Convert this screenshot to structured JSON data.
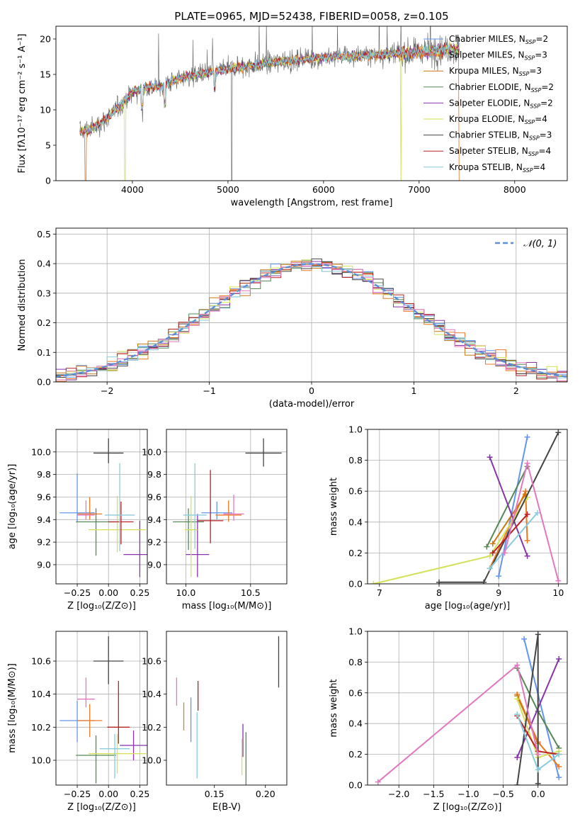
{
  "title": "PLATE=0965, MJD=52438, FIBERID=0058, z=0.105",
  "colors": [
    "#6495ed",
    "#ee7722",
    "#cc7711",
    "#558855",
    "#8833aa",
    "#d4e157",
    "#444444",
    "#bb2222",
    "#88ccdd",
    "#e377c2"
  ],
  "legend_spectrum": [
    {
      "label": "Chabrier MILES, N",
      "sub": "SSP",
      "eq": "=2",
      "color": "#6495ed"
    },
    {
      "label": "Salpeter MILES, N",
      "sub": "SSP",
      "eq": "=3",
      "color": "#ee7722"
    },
    {
      "label": "Kroupa MILES, N",
      "sub": "SSP",
      "eq": "=3",
      "color": "#cc7711"
    },
    {
      "label": "Chabrier ELODIE, N",
      "sub": "SSP",
      "eq": "=2",
      "color": "#558855"
    },
    {
      "label": "Salpeter ELODIE, N",
      "sub": "SSP",
      "eq": "=2",
      "color": "#8833aa"
    },
    {
      "label": "Kroupa ELODIE, N",
      "sub": "SSP",
      "eq": "=4",
      "color": "#d4e157"
    },
    {
      "label": "Chabrier STELIB, N",
      "sub": "SSP",
      "eq": "=3",
      "color": "#444444"
    },
    {
      "label": "Salpeter STELIB, N",
      "sub": "SSP",
      "eq": "=4",
      "color": "#bb2222"
    },
    {
      "label": "Kroupa STELIB, N",
      "sub": "SSP",
      "eq": "=4",
      "color": "#88ccdd"
    }
  ],
  "chart_data": [
    {
      "type": "line",
      "title": "PLATE=0965, MJD=52438, FIBERID=0058, z=0.105",
      "xlabel": "wavelength [Angstrom, rest frame]",
      "ylabel": "Flux [fλ10⁻¹⁷ erg cm⁻² s⁻¹ A⁻¹]",
      "xlim": [
        3200,
        8550
      ],
      "ylim": [
        0,
        21.8
      ],
      "xticks": [
        4000,
        5000,
        6000,
        7000,
        8000
      ],
      "yticks": [
        0,
        5,
        10,
        15,
        20
      ],
      "grid": false,
      "legend": "right",
      "envelope": {
        "x": [
          3450,
          3600,
          3750,
          3900,
          4000,
          4100,
          4200,
          4300,
          4400,
          4500,
          4700,
          4900,
          5100,
          5300,
          5500,
          5700,
          5900,
          6100,
          6300,
          6500,
          6700,
          6900,
          7100,
          7300,
          7420
        ],
        "y": [
          7.0,
          7.5,
          9.0,
          11.0,
          12.5,
          13.0,
          13.3,
          13.2,
          14.0,
          14.5,
          15.0,
          15.5,
          16.0,
          16.3,
          16.8,
          17.0,
          17.3,
          17.5,
          17.6,
          17.7,
          17.9,
          18.0,
          18.3,
          18.6,
          18.5
        ]
      }
    },
    {
      "type": "histogram",
      "xlabel": "(data-model)/error",
      "ylabel": "Normed distribution",
      "xlim": [
        -2.5,
        2.5
      ],
      "ylim": [
        0,
        0.52
      ],
      "xticks": [
        -2,
        -1,
        0,
        1,
        2
      ],
      "yticks": [
        0.0,
        0.1,
        0.2,
        0.3,
        0.4,
        0.5
      ],
      "grid": true,
      "legend": "top-right",
      "legend_label": "𝒩(0, 1)",
      "reference_curve": "standard normal"
    },
    {
      "type": "scatter",
      "xlabel": "Z [log₁₀(Z/Z⊙)]",
      "ylabel": "age  [log₁₀(age/yr)]",
      "xlim": [
        -0.42,
        0.31
      ],
      "ylim": [
        8.83,
        10.2
      ],
      "xticks": [
        -0.25,
        0.0,
        0.25
      ],
      "yticks": [
        9.0,
        9.2,
        9.4,
        9.6,
        9.8,
        10.0
      ],
      "grid": true,
      "points": [
        {
          "x": -0.25,
          "y": 9.46,
          "ex": 0.14,
          "eylo": 0.08,
          "eyhi": 0.35,
          "c": 0
        },
        {
          "x": -0.15,
          "y": 9.45,
          "ex": 0.1,
          "eylo": 0.05,
          "eyhi": 0.15,
          "c": 1
        },
        {
          "x": -0.18,
          "y": 9.44,
          "ex": 0.07,
          "eylo": 0.04,
          "eyhi": 0.13,
          "c": 9
        },
        {
          "x": -0.1,
          "y": 9.38,
          "ex": 0.16,
          "eylo": 0.3,
          "eyhi": 0.12,
          "c": 3
        },
        {
          "x": 0.25,
          "y": 9.09,
          "ex": 0.13,
          "eylo": 0.2,
          "eyhi": 0.3,
          "c": 4
        },
        {
          "x": 0.07,
          "y": 9.31,
          "ex": 0.23,
          "eylo": 0.2,
          "eyhi": 0.3,
          "c": 5
        },
        {
          "x": 0.0,
          "y": 9.99,
          "ex": 0.12,
          "eylo": 0.09,
          "eyhi": 0.13,
          "c": 6
        },
        {
          "x": 0.1,
          "y": 9.38,
          "ex": 0.1,
          "eylo": 0.2,
          "eyhi": 0.18,
          "c": 7
        },
        {
          "x": 0.09,
          "y": 9.44,
          "ex": 0.12,
          "eylo": 0.32,
          "eyhi": 0.46,
          "c": 8
        }
      ]
    },
    {
      "type": "scatter",
      "xlabel": "mass [log₁₀(M/M⊙)]",
      "ylabel": "",
      "xlim": [
        9.85,
        10.78
      ],
      "ylim": [
        8.83,
        10.2
      ],
      "xticks": [
        10.0,
        10.5
      ],
      "yticks": [
        9.0,
        9.2,
        9.4,
        9.6,
        9.8,
        10.0
      ],
      "grid": true,
      "points": [
        {
          "x": 10.24,
          "y": 9.46,
          "ex": 0.12,
          "eylo": 0.06,
          "eyhi": 0.1,
          "c": 0
        },
        {
          "x": 10.33,
          "y": 9.44,
          "ex": 0.1,
          "eylo": 0.06,
          "eyhi": 0.13,
          "c": 1
        },
        {
          "x": 10.37,
          "y": 9.45,
          "ex": 0.08,
          "eylo": 0.06,
          "eyhi": 0.17,
          "c": 9
        },
        {
          "x": 10.02,
          "y": 9.38,
          "ex": 0.12,
          "eylo": 0.25,
          "eyhi": 0.12,
          "c": 3
        },
        {
          "x": 10.09,
          "y": 9.09,
          "ex": 0.09,
          "eylo": 0.2,
          "eyhi": 0.36,
          "c": 4
        },
        {
          "x": 10.04,
          "y": 9.31,
          "ex": 0.05,
          "eylo": 0.42,
          "eyhi": 0.3,
          "c": 5
        },
        {
          "x": 10.6,
          "y": 9.99,
          "ex": 0.14,
          "eylo": 0.12,
          "eyhi": 0.13,
          "c": 6
        },
        {
          "x": 10.19,
          "y": 9.39,
          "ex": 0.1,
          "eylo": 0.2,
          "eyhi": 0.45,
          "c": 7
        },
        {
          "x": 10.07,
          "y": 9.44,
          "ex": 0.09,
          "eylo": 0.3,
          "eyhi": 0.46,
          "c": 8
        }
      ]
    },
    {
      "type": "line",
      "xlabel": "age  [log₁₀(age/yr)]",
      "ylabel": "mass weight",
      "xlim": [
        6.8,
        10.15
      ],
      "ylim": [
        0,
        1.0
      ],
      "xticks": [
        7,
        8,
        9,
        10
      ],
      "yticks": [
        0.0,
        0.2,
        0.4,
        0.6,
        0.8,
        1.0
      ],
      "grid": true,
      "series": [
        {
          "c": 0,
          "x": [
            9.0,
            9.48
          ],
          "y": [
            0.05,
            0.95
          ]
        },
        {
          "c": 1,
          "x": [
            8.85,
            9.45,
            9.48
          ],
          "y": [
            0.1,
            0.6,
            0.28
          ]
        },
        {
          "c": 2,
          "x": [
            8.9,
            9.45
          ],
          "y": [
            0.26,
            0.58
          ]
        },
        {
          "c": 3,
          "x": [
            8.8,
            9.48
          ],
          "y": [
            0.24,
            0.76
          ]
        },
        {
          "c": 4,
          "x": [
            8.85,
            9.48
          ],
          "y": [
            0.82,
            0.18
          ]
        },
        {
          "c": 5,
          "x": [
            6.9,
            8.85,
            9.48
          ],
          "y": [
            0.0,
            0.18,
            0.56
          ]
        },
        {
          "c": 6,
          "x": [
            8.0,
            8.75,
            10.0
          ],
          "y": [
            0.01,
            0.01,
            0.98
          ]
        },
        {
          "c": 7,
          "x": [
            8.9,
            9.48
          ],
          "y": [
            0.2,
            0.45
          ]
        },
        {
          "c": 8,
          "x": [
            8.85,
            9.65
          ],
          "y": [
            0.1,
            0.46
          ]
        },
        {
          "c": 9,
          "x": [
            9.1,
            9.48,
            10.0
          ],
          "y": [
            0.2,
            0.78,
            0.02
          ]
        }
      ]
    },
    {
      "type": "scatter",
      "xlabel": "Z [log₁₀(Z/Z⊙)]",
      "ylabel": "mass [log₁₀(M/M⊙)]",
      "xlim": [
        -0.42,
        0.31
      ],
      "ylim": [
        9.85,
        10.78
      ],
      "xticks": [
        -0.25,
        0.0,
        0.25
      ],
      "yticks": [
        10.0,
        10.2,
        10.4,
        10.6
      ],
      "grid": true,
      "points": [
        {
          "x": -0.25,
          "y": 10.24,
          "ex": 0.14,
          "eylo": 0.13,
          "eyhi": 0.12,
          "c": 0
        },
        {
          "x": -0.15,
          "y": 10.24,
          "ex": 0.1,
          "eylo": 0.1,
          "eyhi": 0.1,
          "c": 1
        },
        {
          "x": -0.18,
          "y": 10.37,
          "ex": 0.07,
          "eylo": 0.05,
          "eyhi": 0.13,
          "c": 9
        },
        {
          "x": -0.1,
          "y": 10.03,
          "ex": 0.16,
          "eylo": 0.17,
          "eyhi": 0.12,
          "c": 3
        },
        {
          "x": 0.2,
          "y": 10.09,
          "ex": 0.11,
          "eylo": 0.09,
          "eyhi": 0.09,
          "c": 4
        },
        {
          "x": 0.07,
          "y": 10.04,
          "ex": 0.23,
          "eylo": 0.12,
          "eyhi": 0.12,
          "c": 5
        },
        {
          "x": 0.0,
          "y": 10.6,
          "ex": 0.12,
          "eylo": 0.14,
          "eyhi": 0.15,
          "c": 6
        },
        {
          "x": 0.08,
          "y": 10.2,
          "ex": 0.09,
          "eylo": 0.1,
          "eyhi": 0.28,
          "c": 7
        },
        {
          "x": 0.05,
          "y": 10.07,
          "ex": 0.12,
          "eylo": 0.18,
          "eyhi": 0.09,
          "c": 8
        }
      ]
    },
    {
      "type": "scatter",
      "xlabel": "E(B-V)",
      "ylabel": "",
      "xlim": [
        0.103,
        0.221
      ],
      "ylim": [
        9.85,
        10.78
      ],
      "xticks": [
        0.15,
        0.2
      ],
      "yticks": [
        10.0,
        10.2,
        10.4,
        10.6
      ],
      "grid": false,
      "points": [
        {
          "x": 0.127,
          "y": 10.24,
          "ex": 0,
          "eylo": 0.13,
          "eyhi": 0.14,
          "c": 0
        },
        {
          "x": 0.12,
          "y": 10.25,
          "ex": 0,
          "eylo": 0.07,
          "eyhi": 0.1,
          "c": 1
        },
        {
          "x": 0.113,
          "y": 10.41,
          "ex": 0,
          "eylo": 0.08,
          "eyhi": 0.09,
          "c": 9
        },
        {
          "x": 0.181,
          "y": 10.03,
          "ex": 0,
          "eylo": 0.18,
          "eyhi": 0.14,
          "c": 3
        },
        {
          "x": 0.178,
          "y": 10.12,
          "ex": 0,
          "eylo": 0.1,
          "eyhi": 0.1,
          "c": 4
        },
        {
          "x": 0.177,
          "y": 10.02,
          "ex": 0,
          "eylo": 0.11,
          "eyhi": 0.11,
          "c": 5
        },
        {
          "x": 0.213,
          "y": 10.6,
          "ex": 0,
          "eylo": 0.16,
          "eyhi": 0.15,
          "c": 6
        },
        {
          "x": 0.134,
          "y": 10.37,
          "ex": 0,
          "eylo": 0.07,
          "eyhi": 0.11,
          "c": 7
        },
        {
          "x": 0.133,
          "y": 10.09,
          "ex": 0,
          "eylo": 0.2,
          "eyhi": 0.2,
          "c": 8
        }
      ]
    },
    {
      "type": "line",
      "xlabel": "Z [log₁₀(Z/Z⊙)]",
      "ylabel": "mass weight",
      "xlim": [
        -2.45,
        0.42
      ],
      "ylim": [
        0,
        1.0
      ],
      "xticks": [
        -2.0,
        -1.5,
        -1.0,
        -0.5,
        0.0
      ],
      "yticks": [
        0.0,
        0.2,
        0.4,
        0.6,
        0.8,
        1.0
      ],
      "grid": true,
      "series": [
        {
          "c": 0,
          "x": [
            -0.2,
            0.3
          ],
          "y": [
            0.95,
            0.05
          ]
        },
        {
          "c": 1,
          "x": [
            -0.3,
            0.0,
            0.3
          ],
          "y": [
            0.59,
            0.28,
            0.12
          ]
        },
        {
          "c": 2,
          "x": [
            -0.3,
            0.0
          ],
          "y": [
            0.58,
            0.27
          ]
        },
        {
          "c": 3,
          "x": [
            -0.3,
            0.0,
            0.3
          ],
          "y": [
            0.76,
            0.48,
            0.24
          ]
        },
        {
          "c": 4,
          "x": [
            -0.3,
            0.3
          ],
          "y": [
            0.18,
            0.82
          ]
        },
        {
          "c": 5,
          "x": [
            -0.3,
            0.0,
            0.3
          ],
          "y": [
            0.56,
            0.18,
            0.22
          ]
        },
        {
          "c": 6,
          "x": [
            -0.3,
            0.0,
            0.0
          ],
          "y": [
            0.0,
            0.98,
            0.01
          ]
        },
        {
          "c": 7,
          "x": [
            -0.3,
            0.0,
            0.3
          ],
          "y": [
            0.45,
            0.22,
            0.2
          ]
        },
        {
          "c": 8,
          "x": [
            -0.3,
            0.0,
            0.3
          ],
          "y": [
            0.46,
            0.1,
            0.2
          ]
        },
        {
          "c": 9,
          "x": [
            -2.3,
            -0.3,
            0.0
          ],
          "y": [
            0.02,
            0.78,
            0.2
          ]
        }
      ]
    }
  ]
}
